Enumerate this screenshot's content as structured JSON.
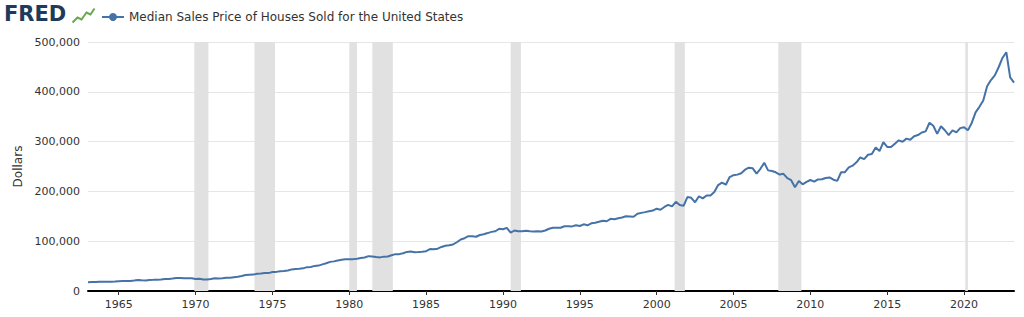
{
  "chart_data": {
    "type": "line",
    "logo": "FRED",
    "y_label": "Dollars",
    "legend": "top-left",
    "grid": true,
    "series": [
      {
        "name": "Median Sales Price of Houses Sold for the United States",
        "color": "#4572a7",
        "values": [
          17800,
          18000,
          17900,
          18500,
          18500,
          18500,
          18400,
          19000,
          19800,
          20000,
          20200,
          20300,
          21000,
          22100,
          21500,
          21200,
          22300,
          22400,
          22600,
          23100,
          23900,
          24300,
          25200,
          26300,
          26000,
          25700,
          25800,
          25400,
          23900,
          24400,
          23000,
          23000,
          24300,
          25800,
          25300,
          25500,
          26500,
          26600,
          27600,
          28500,
          30200,
          32000,
          32500,
          32900,
          34700,
          35300,
          36000,
          35900,
          38200,
          38400,
          39600,
          40200,
          41200,
          43400,
          44200,
          44800,
          45500,
          47900,
          48300,
          50400,
          51000,
          53400,
          55800,
          58500,
          59500,
          61400,
          62700,
          63900,
          63700,
          64000,
          64900,
          66400,
          67200,
          70000,
          69400,
          68200,
          67500,
          69000,
          69400,
          71700,
          74000,
          74000,
          75800,
          78500,
          79500,
          78000,
          78300,
          79000,
          80000,
          84300,
          83900,
          85000,
          88500,
          90900,
          91800,
          93500,
          97900,
          103400,
          106000,
          110000,
          110000,
          109000,
          112500,
          114000,
          116300,
          118700,
          120000,
          124800,
          123900,
          126800,
          117000,
          121500,
          120000,
          119900,
          121000,
          120000,
          119500,
          120000,
          119500,
          121500,
          125000,
          127000,
          127000,
          127000,
          130000,
          130000,
          129700,
          132000,
          130500,
          133900,
          132000,
          136000,
          137000,
          139000,
          141000,
          140000,
          145000,
          144000,
          146000,
          147500,
          150000,
          149500,
          149000,
          155000,
          156900,
          158400,
          160000,
          161500,
          165300,
          163200,
          168800,
          172900,
          169800,
          179000,
          172500,
          171100,
          188700,
          187200,
          178100,
          190100,
          186000,
          191800,
          191900,
          198800,
          212700,
          217600,
          213500,
          228800,
          232500,
          233700,
          236400,
          243600,
          247700,
          246300,
          235600,
          245400,
          257400,
          242200,
          241000,
          238400,
          233900,
          235300,
          226500,
          222500,
          208400,
          220900,
          214300,
          219000,
          222900,
          219500,
          224100,
          224300,
          226900,
          228100,
          223500,
          221100,
          238400,
          238700,
          248200,
          251700,
          258400,
          268100,
          264800,
          273600,
          275200,
          288000,
          281000,
          298900,
          289200,
          289100,
          295800,
          302500,
          299800,
          306000,
          303800,
          310900,
          313100,
          318200,
          320500,
          337900,
          331800,
          315600,
          330900,
          322800,
          313000,
          322500,
          318400,
          327100,
          329000,
          322600,
          337500,
          358700,
          369800,
          382600,
          411200,
          423600,
          433100,
          449300,
          468000,
          479500,
          429000,
          418500
        ]
      }
    ],
    "x": [
      1963,
      1963.25,
      1963.5,
      1963.75,
      1964,
      1964.25,
      1964.5,
      1964.75,
      1965,
      1965.25,
      1965.5,
      1965.75,
      1966,
      1966.25,
      1966.5,
      1966.75,
      1967,
      1967.25,
      1967.5,
      1967.75,
      1968,
      1968.25,
      1968.5,
      1968.75,
      1969,
      1969.25,
      1969.5,
      1969.75,
      1970,
      1970.25,
      1970.5,
      1970.75,
      1971,
      1971.25,
      1971.5,
      1971.75,
      1972,
      1972.25,
      1972.5,
      1972.75,
      1973,
      1973.25,
      1973.5,
      1973.75,
      1974,
      1974.25,
      1974.5,
      1974.75,
      1975,
      1975.25,
      1975.5,
      1975.75,
      1976,
      1976.25,
      1976.5,
      1976.75,
      1977,
      1977.25,
      1977.5,
      1977.75,
      1978,
      1978.25,
      1978.5,
      1978.75,
      1979,
      1979.25,
      1979.5,
      1979.75,
      1980,
      1980.25,
      1980.5,
      1980.75,
      1981,
      1981.25,
      1981.5,
      1981.75,
      1982,
      1982.25,
      1982.5,
      1982.75,
      1983,
      1983.25,
      1983.5,
      1983.75,
      1984,
      1984.25,
      1984.5,
      1984.75,
      1985,
      1985.25,
      1985.5,
      1985.75,
      1986,
      1986.25,
      1986.5,
      1986.75,
      1987,
      1987.25,
      1987.5,
      1987.75,
      1988,
      1988.25,
      1988.5,
      1988.75,
      1989,
      1989.25,
      1989.5,
      1989.75,
      1990,
      1990.25,
      1990.5,
      1990.75,
      1991,
      1991.25,
      1991.5,
      1991.75,
      1992,
      1992.25,
      1992.5,
      1992.75,
      1993,
      1993.25,
      1993.5,
      1993.75,
      1994,
      1994.25,
      1994.5,
      1994.75,
      1995,
      1995.25,
      1995.5,
      1995.75,
      1996,
      1996.25,
      1996.5,
      1996.75,
      1997,
      1997.25,
      1997.5,
      1997.75,
      1998,
      1998.25,
      1998.5,
      1998.75,
      1999,
      1999.25,
      1999.5,
      1999.75,
      2000,
      2000.25,
      2000.5,
      2000.75,
      2001,
      2001.25,
      2001.5,
      2001.75,
      2002,
      2002.25,
      2002.5,
      2002.75,
      2003,
      2003.25,
      2003.5,
      2003.75,
      2004,
      2004.25,
      2004.5,
      2004.75,
      2005,
      2005.25,
      2005.5,
      2005.75,
      2006,
      2006.25,
      2006.5,
      2006.75,
      2007,
      2007.25,
      2007.5,
      2007.75,
      2008,
      2008.25,
      2008.5,
      2008.75,
      2009,
      2009.25,
      2009.5,
      2009.75,
      2010,
      2010.25,
      2010.5,
      2010.75,
      2011,
      2011.25,
      2011.5,
      2011.75,
      2012,
      2012.25,
      2012.5,
      2012.75,
      2013,
      2013.25,
      2013.5,
      2013.75,
      2014,
      2014.25,
      2014.5,
      2014.75,
      2015,
      2015.25,
      2015.5,
      2015.75,
      2016,
      2016.25,
      2016.5,
      2016.75,
      2017,
      2017.25,
      2017.5,
      2017.75,
      2018,
      2018.25,
      2018.5,
      2018.75,
      2019,
      2019.25,
      2019.5,
      2019.75,
      2020,
      2020.25,
      2020.5,
      2020.75,
      2021,
      2021.25,
      2021.5,
      2021.75,
      2022,
      2022.25,
      2022.5,
      2022.75,
      2023,
      2023.25
    ],
    "xlim": [
      1963,
      2023.25
    ],
    "xticks": [
      1965,
      1970,
      1975,
      1980,
      1985,
      1990,
      1995,
      2000,
      2005,
      2010,
      2015,
      2020
    ],
    "ylim": [
      0,
      500000
    ],
    "yticks": [
      0,
      {
        "value": 100000,
        "label": "100,000"
      },
      {
        "value": 200000,
        "label": "200,000"
      },
      {
        "value": 300000,
        "label": "300,000"
      },
      {
        "value": 400000,
        "label": "400,000"
      },
      {
        "value": 500000,
        "label": "500,000"
      }
    ],
    "recessions": [
      [
        1969.917,
        1970.833
      ],
      [
        1973.833,
        1975.167
      ],
      [
        1980.0,
        1980.5
      ],
      [
        1981.5,
        1982.833
      ],
      [
        1990.5,
        1991.167
      ],
      [
        2001.167,
        2001.833
      ],
      [
        2007.917,
        2009.417
      ],
      [
        2020.083,
        2020.25
      ]
    ]
  }
}
